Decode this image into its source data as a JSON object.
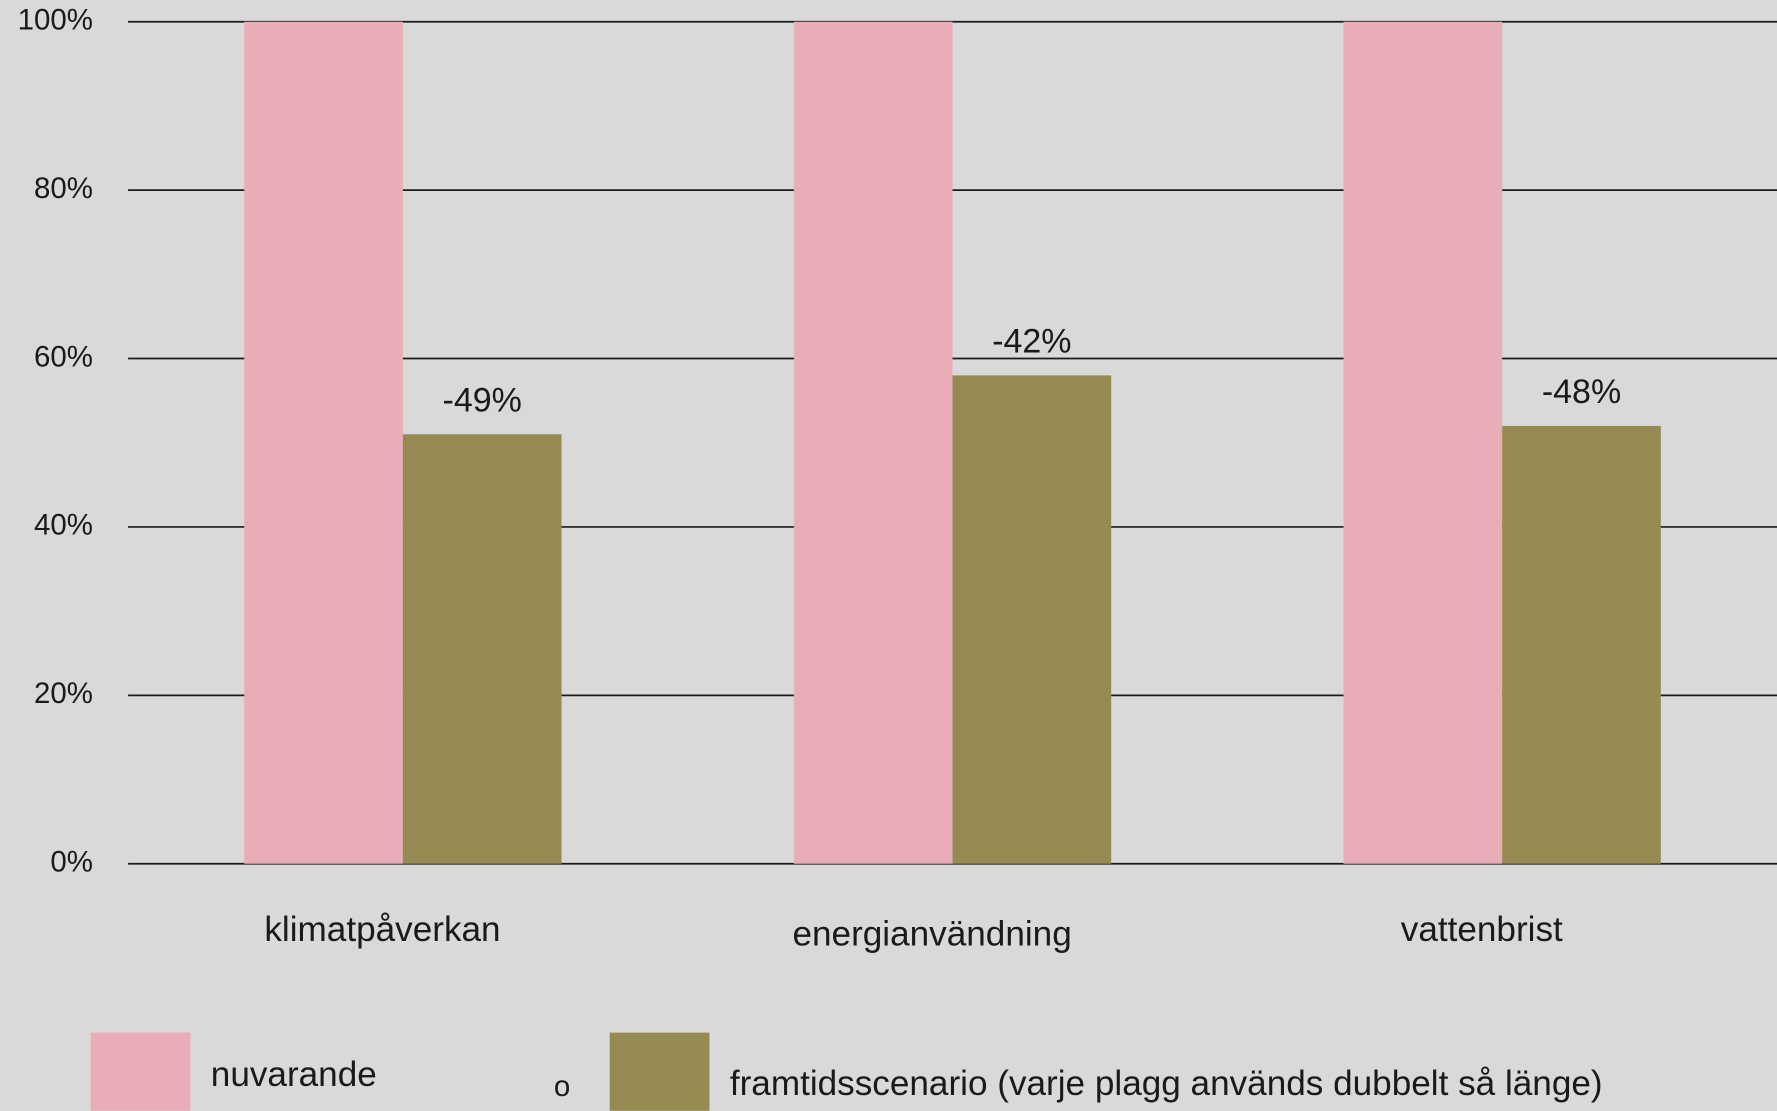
{
  "chart_data": {
    "type": "bar",
    "categories": [
      "klimatpåverkan",
      "energianvändning",
      "vattenbrist"
    ],
    "series": [
      {
        "name": "nuvarande",
        "color": "#e8adb7",
        "values": [
          100,
          100,
          100
        ]
      },
      {
        "name": "framtidsscenario (varje plagg används dubbelt så länge)",
        "color": "#958b52",
        "values": [
          51,
          58,
          52
        ]
      }
    ],
    "annotations": [
      "-49%",
      "-42%",
      "-48%"
    ],
    "legend_separator": "o",
    "ylim": [
      0,
      100
    ],
    "yticks": [
      {
        "value": 0,
        "label": "0%"
      },
      {
        "value": 20,
        "label": "20%"
      },
      {
        "value": 40,
        "label": "40%"
      },
      {
        "value": 60,
        "label": "60%"
      },
      {
        "value": 80,
        "label": "80%"
      },
      {
        "value": 100,
        "label": "100%"
      }
    ],
    "grid": true,
    "legend": "bottom"
  }
}
